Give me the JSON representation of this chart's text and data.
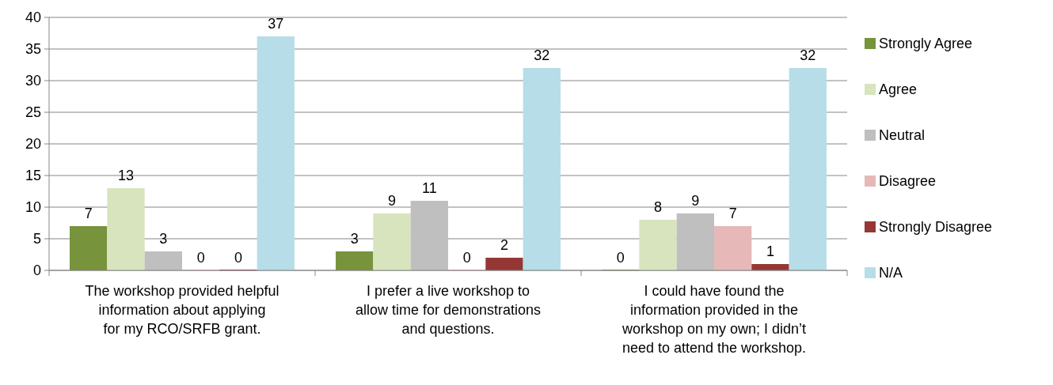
{
  "chart_data": {
    "type": "bar",
    "categories": [
      "The workshop provided helpful information about applying for my RCO/SRFB grant.",
      "I prefer a live workshop to allow time for demonstrations and questions.",
      "I could have found the information provided in the workshop on my own; I didn’t need to attend the workshop."
    ],
    "series": [
      {
        "name": "Strongly Agree",
        "color": "#77933c",
        "values": [
          7,
          3,
          0
        ]
      },
      {
        "name": "Agree",
        "color": "#d7e4bd",
        "values": [
          13,
          9,
          8
        ]
      },
      {
        "name": "Neutral",
        "color": "#bfbfbf",
        "values": [
          3,
          11,
          9
        ]
      },
      {
        "name": "Disagree",
        "color": "#e6b9b8",
        "values": [
          0,
          0,
          7
        ]
      },
      {
        "name": "Strongly Disagree",
        "color": "#953735",
        "values": [
          0,
          2,
          1
        ]
      },
      {
        "name": "N/A",
        "color": "#b7dee8",
        "values": [
          37,
          32,
          32
        ]
      }
    ],
    "ylim": [
      0,
      40
    ],
    "yticks": [
      0,
      5,
      10,
      15,
      20,
      25,
      30,
      35,
      40
    ],
    "grid": "y",
    "legend": "right",
    "data_labels": true
  }
}
